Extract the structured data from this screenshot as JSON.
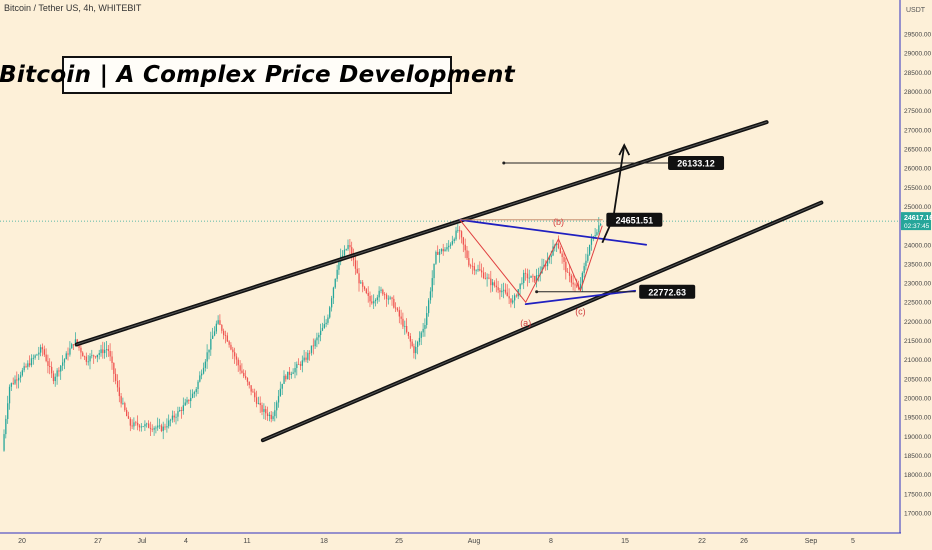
{
  "header": {
    "symbol": "Bitcoin / Tether US, 4h, WHITEBIT"
  },
  "title": "Bitcoin | A Complex Price Development",
  "colors": {
    "background": "#fdf0d8",
    "up_candle": "#26a69a",
    "down_candle": "#ef5350",
    "channel_line": "#111111",
    "triangle_line": "#2020c0",
    "wave_line": "#e04040",
    "current_price_tag": "#26a69a"
  },
  "price_axis": {
    "unit": "USDT",
    "ticks": [
      "29500.00",
      "29000.00",
      "28500.00",
      "28000.00",
      "27500.00",
      "27000.00",
      "26500.00",
      "26000.00",
      "25500.00",
      "25000.00",
      "24500.00",
      "24000.00",
      "23500.00",
      "23000.00",
      "22500.00",
      "22000.00",
      "21500.00",
      "21000.00",
      "20500.00",
      "20000.00",
      "19500.00",
      "19000.00",
      "18500.00",
      "18000.00",
      "17500.00",
      "17000.00"
    ],
    "current_price": "24617.16",
    "countdown": "02:37:45"
  },
  "time_axis": {
    "ticks": [
      "20",
      "27",
      "Jul",
      "4",
      "11",
      "18",
      "25",
      "Aug",
      "8",
      "15",
      "22",
      "26",
      "Sep",
      "5"
    ]
  },
  "annotations": {
    "target_label": "26133.12",
    "resistance_label": "24651.51",
    "support_label": "22772.63",
    "wave_a": "(a)",
    "wave_b": "(b)",
    "wave_c": "(c)"
  },
  "chart_data": {
    "type": "candlestick",
    "title": "Bitcoin | A Complex Price Development",
    "xlabel": "",
    "ylabel": "",
    "y_range": [
      16800,
      29900
    ],
    "x_range": [
      "Jun 20",
      "Sep 5"
    ],
    "grid": false,
    "legend": "none",
    "anchors": [
      {
        "t": "Jun 16",
        "p": 19000
      },
      {
        "t": "Jun 18",
        "p": 17700
      },
      {
        "t": "Jun 19",
        "p": 20300
      },
      {
        "t": "Jun 22",
        "p": 21300
      },
      {
        "t": "Jun 23",
        "p": 20500
      },
      {
        "t": "Jun 25",
        "p": 21500
      },
      {
        "t": "Jun 26",
        "p": 21000
      },
      {
        "t": "Jun 28",
        "p": 21300
      },
      {
        "t": "Jun 29",
        "p": 20100
      },
      {
        "t": "Jun 30",
        "p": 19300
      },
      {
        "t": "Jul 1",
        "p": 19300
      },
      {
        "t": "Jul 3",
        "p": 19200
      },
      {
        "t": "Jul 5",
        "p": 19800
      },
      {
        "t": "Jul 6",
        "p": 20200
      },
      {
        "t": "Jul 8",
        "p": 22000
      },
      {
        "t": "Jul 9",
        "p": 21500
      },
      {
        "t": "Jul 10",
        "p": 20800
      },
      {
        "t": "Jul 12",
        "p": 19700
      },
      {
        "t": "Jul 13",
        "p": 19500
      },
      {
        "t": "Jul 14",
        "p": 20500
      },
      {
        "t": "Jul 16",
        "p": 21000
      },
      {
        "t": "Jul 18",
        "p": 22000
      },
      {
        "t": "Jul 19",
        "p": 23500
      },
      {
        "t": "Jul 20",
        "p": 24000
      },
      {
        "t": "Jul 21",
        "p": 23000
      },
      {
        "t": "Jul 22",
        "p": 22500
      },
      {
        "t": "Jul 23",
        "p": 22800
      },
      {
        "t": "Jul 24",
        "p": 22500
      },
      {
        "t": "Jul 25",
        "p": 21900
      },
      {
        "t": "Jul 26",
        "p": 21200
      },
      {
        "t": "Jul 27",
        "p": 22000
      },
      {
        "t": "Jul 28",
        "p": 23800
      },
      {
        "t": "Jul 29",
        "p": 23900
      },
      {
        "t": "Jul 30",
        "p": 24400
      },
      {
        "t": "Jul 31",
        "p": 23500
      },
      {
        "t": "Aug 1",
        "p": 23300
      },
      {
        "t": "Aug 2",
        "p": 23000
      },
      {
        "t": "Aug 3",
        "p": 22800
      },
      {
        "t": "Aug 4",
        "p": 22500
      },
      {
        "t": "Aug 5",
        "p": 23200
      },
      {
        "t": "Aug 6",
        "p": 23100
      },
      {
        "t": "Aug 7",
        "p": 23500
      },
      {
        "t": "Aug 8",
        "p": 24100
      },
      {
        "t": "Aug 9",
        "p": 23200
      },
      {
        "t": "Aug 10",
        "p": 22800
      },
      {
        "t": "Aug 11",
        "p": 24000
      },
      {
        "t": "Aug 12",
        "p": 24600
      }
    ],
    "drawings": {
      "upper_channel": {
        "from": {
          "t": "Jun 25",
          "p": 21400
        },
        "to": {
          "t": "Aug 27",
          "p": 27200
        }
      },
      "lower_channel": {
        "from": {
          "t": "Jul 12",
          "p": 18900
        },
        "to": {
          "t": "Sep 1",
          "p": 25100
        }
      },
      "triangle_upper": {
        "from": {
          "t": "Jul 30",
          "p": 24650
        },
        "to": {
          "t": "Aug 16",
          "p": 24000
        }
      },
      "triangle_lower": {
        "from": {
          "t": "Aug 5",
          "p": 22450
        },
        "to": {
          "t": "Aug 15",
          "p": 22800
        }
      },
      "target_level": {
        "from": {
          "t": "Aug 3",
          "p": 26133.12
        },
        "to": {
          "t": "Aug 18",
          "p": 26133.12
        }
      },
      "resistance_level": {
        "from": {
          "t": "Jul 30",
          "p": 24651.51
        },
        "to": {
          "t": "Aug 12",
          "p": 24651.51
        }
      },
      "support_level": {
        "from": {
          "t": "Aug 6",
          "p": 22772.63
        },
        "to": {
          "t": "Aug 15",
          "p": 22772.63
        }
      },
      "projection": [
        {
          "t": "Aug 12",
          "p": 24050
        },
        {
          "t": "Aug 13",
          "p": 24700
        },
        {
          "t": "Aug 14",
          "p": 26600
        }
      ],
      "wave_path": [
        {
          "t": "Jul 30",
          "p": 24650
        },
        {
          "t": "Aug 5",
          "p": 22500
        },
        {
          "t": "Aug 8",
          "p": 24150
        },
        {
          "t": "Aug 10",
          "p": 22800
        },
        {
          "t": "Aug 12",
          "p": 24500
        }
      ]
    }
  }
}
